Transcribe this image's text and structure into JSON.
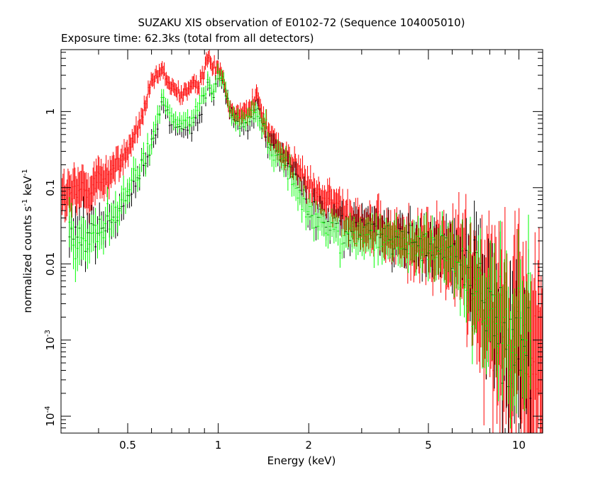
{
  "title": "SUZAKU XIS observation of E0102-72 (Sequence 104005010)",
  "subtitle": "Exposure time: 62.3ks (total from all detectors)",
  "chart_data": {
    "type": "scatter",
    "title": "SUZAKU XIS observation of E0102-72 (Sequence 104005010)",
    "subtitle": "Exposure time: 62.3ks (total from all detectors)",
    "xlabel": "Energy (keV)",
    "ylabel_parts": [
      "normalized counts s",
      "-1",
      " keV",
      "-1"
    ],
    "xscale": "log",
    "yscale": "log",
    "xlim": [
      0.3,
      12
    ],
    "ylim": [
      6e-05,
      6.5
    ],
    "x_ticks": [
      {
        "value": 0.5,
        "label": "0.5"
      },
      {
        "value": 1,
        "label": "1"
      },
      {
        "value": 2,
        "label": "2"
      },
      {
        "value": 5,
        "label": "5"
      },
      {
        "value": 10,
        "label": "10"
      }
    ],
    "y_ticks": [
      {
        "value": 0.0001,
        "base": "10",
        "exp": "-4"
      },
      {
        "value": 0.001,
        "base": "10",
        "exp": "-3"
      },
      {
        "value": 0.01,
        "label": "0.01"
      },
      {
        "value": 0.1,
        "label": "0.1"
      },
      {
        "value": 1,
        "label": "1"
      }
    ],
    "series": [
      {
        "color": "#ff0000",
        "bins_per_decade": 300,
        "x": [
          0.3,
          0.35,
          0.4,
          0.45,
          0.5,
          0.55,
          0.6,
          0.65,
          0.7,
          0.75,
          0.8,
          0.85,
          0.9,
          0.93,
          0.96,
          1.0,
          1.04,
          1.08,
          1.12,
          1.16,
          1.2,
          1.25,
          1.3,
          1.35,
          1.4,
          1.5,
          1.7,
          1.9,
          2.0,
          2.3,
          2.6,
          3.0,
          3.5,
          4.0,
          4.5,
          5.0,
          5.5,
          6.0,
          6.5,
          7.0,
          7.5,
          8.0,
          9.0,
          10.0,
          11.0,
          12.0
        ],
        "y": [
          0.07,
          0.09,
          0.12,
          0.17,
          0.3,
          0.7,
          2.3,
          3.5,
          2.0,
          1.7,
          2.0,
          2.2,
          3.5,
          5.5,
          3.5,
          4.0,
          3.0,
          1.2,
          1.0,
          0.9,
          1.1,
          1.0,
          1.2,
          1.6,
          0.8,
          0.45,
          0.25,
          0.14,
          0.1,
          0.065,
          0.05,
          0.035,
          0.025,
          0.02,
          0.018,
          0.016,
          0.015,
          0.013,
          0.01,
          0.0065,
          0.004,
          0.003,
          0.0015,
          0.0009,
          0.0005,
          0.0003
        ],
        "scatter": [
          0.22,
          0.22,
          0.2,
          0.16,
          0.12,
          0.1,
          0.08,
          0.08,
          0.08,
          0.08,
          0.08,
          0.08,
          0.08,
          0.08,
          0.08,
          0.08,
          0.08,
          0.08,
          0.08,
          0.1,
          0.1,
          0.1,
          0.1,
          0.1,
          0.12,
          0.12,
          0.12,
          0.14,
          0.14,
          0.16,
          0.18,
          0.2,
          0.22,
          0.24,
          0.26,
          0.3,
          0.34,
          0.38,
          0.45,
          0.55,
          0.65,
          0.8,
          0.9,
          1.0,
          1.0,
          1.0
        ]
      },
      {
        "color": "#000000",
        "bins_per_decade": 150,
        "x": [
          0.32,
          0.36,
          0.4,
          0.45,
          0.5,
          0.55,
          0.6,
          0.65,
          0.7,
          0.75,
          0.8,
          0.85,
          0.9,
          0.93,
          0.96,
          1.0,
          1.05,
          1.1,
          1.15,
          1.2,
          1.25,
          1.3,
          1.35,
          1.4,
          1.5,
          1.7,
          1.9,
          2.0,
          2.3,
          2.6,
          3.0,
          3.5,
          4.0,
          4.5,
          5.0,
          5.5,
          6.0,
          6.5,
          7.0,
          7.5,
          8.0,
          9.0,
          10.0,
          11.0
        ],
        "y": [
          0.025,
          0.025,
          0.028,
          0.04,
          0.08,
          0.15,
          0.35,
          1.2,
          0.7,
          0.6,
          0.6,
          0.8,
          1.5,
          2.5,
          1.5,
          3.0,
          2.0,
          0.8,
          0.7,
          0.7,
          0.7,
          0.8,
          1.0,
          0.6,
          0.35,
          0.2,
          0.1,
          0.045,
          0.035,
          0.03,
          0.03,
          0.025,
          0.022,
          0.019,
          0.016,
          0.015,
          0.013,
          0.01,
          0.007,
          0.005,
          0.003,
          0.0015,
          0.0008,
          0.0005
        ],
        "scatter": [
          0.25,
          0.25,
          0.2,
          0.2,
          0.15,
          0.14,
          0.12,
          0.1,
          0.1,
          0.1,
          0.1,
          0.1,
          0.1,
          0.1,
          0.1,
          0.1,
          0.1,
          0.1,
          0.1,
          0.1,
          0.1,
          0.12,
          0.12,
          0.12,
          0.14,
          0.14,
          0.16,
          0.16,
          0.16,
          0.18,
          0.2,
          0.22,
          0.22,
          0.24,
          0.26,
          0.28,
          0.3,
          0.35,
          0.45,
          0.55,
          0.6,
          0.7,
          0.7,
          0.7
        ]
      },
      {
        "color": "#00ff00",
        "bins_per_decade": 150,
        "x": [
          0.32,
          0.36,
          0.4,
          0.45,
          0.5,
          0.55,
          0.6,
          0.65,
          0.7,
          0.75,
          0.8,
          0.85,
          0.9,
          0.93,
          0.96,
          1.0,
          1.05,
          1.1,
          1.15,
          1.2,
          1.25,
          1.3,
          1.35,
          1.4,
          1.5,
          1.7,
          1.9,
          2.0,
          2.3,
          2.6,
          3.0,
          3.5,
          4.0,
          4.5,
          5.0,
          5.5,
          6.0,
          6.5,
          7.0,
          7.5,
          8.0,
          9.0,
          10.0,
          11.0
        ],
        "y": [
          0.02,
          0.02,
          0.026,
          0.04,
          0.09,
          0.18,
          0.4,
          1.4,
          0.8,
          0.7,
          0.75,
          1.0,
          1.7,
          2.8,
          1.7,
          3.2,
          2.2,
          0.9,
          0.8,
          0.8,
          0.8,
          0.9,
          1.1,
          0.65,
          0.35,
          0.18,
          0.08,
          0.04,
          0.03,
          0.025,
          0.022,
          0.02,
          0.018,
          0.017,
          0.015,
          0.014,
          0.012,
          0.009,
          0.006,
          0.004,
          0.003,
          0.0015,
          0.0008,
          0.0008
        ],
        "scatter": [
          0.3,
          0.25,
          0.2,
          0.2,
          0.15,
          0.14,
          0.12,
          0.1,
          0.1,
          0.1,
          0.1,
          0.1,
          0.1,
          0.1,
          0.1,
          0.1,
          0.1,
          0.1,
          0.1,
          0.1,
          0.1,
          0.12,
          0.12,
          0.12,
          0.14,
          0.14,
          0.16,
          0.16,
          0.16,
          0.18,
          0.2,
          0.22,
          0.22,
          0.24,
          0.26,
          0.28,
          0.3,
          0.35,
          0.45,
          0.55,
          0.6,
          0.7,
          0.7,
          0.7
        ]
      }
    ],
    "grid": false,
    "legend": "none"
  }
}
